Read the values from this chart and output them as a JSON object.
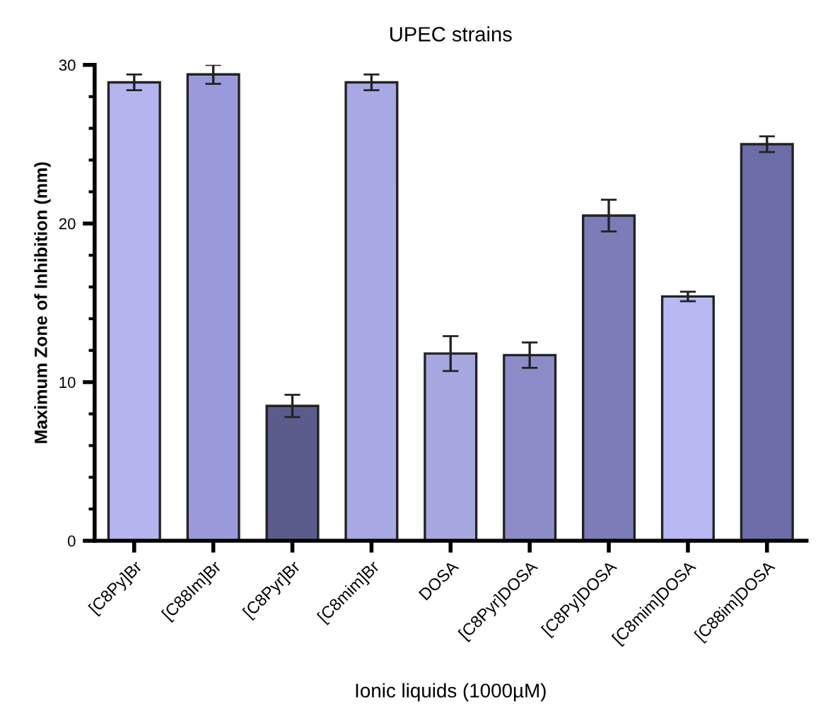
{
  "chart_data": {
    "type": "bar",
    "title": "UPEC strains",
    "xlabel": "Ionic liquids (1000µM)",
    "ylabel": "Maximum Zone of Inhibition (mm)",
    "categories": [
      "[C8Py]Br",
      "[C88Im]Br",
      "[C8Pyr]Br",
      "[C8mim]Br",
      "DOSA",
      "[C8Pyr]DOSA",
      "[C8Py]DOSA",
      "[C8mim]DOSA",
      "[C88im]DOSA"
    ],
    "values": [
      28.9,
      29.4,
      8.5,
      28.9,
      11.8,
      11.7,
      20.5,
      15.4,
      25.0
    ],
    "errors": [
      0.5,
      0.6,
      0.7,
      0.5,
      1.1,
      0.8,
      1.0,
      0.3,
      0.5
    ],
    "colors": [
      "#b4b4ee",
      "#9a9ada",
      "#5c5c8c",
      "#a8a8e4",
      "#a8a8e0",
      "#8c8cc8",
      "#7c7cb8",
      "#b8b8f2",
      "#6c6ca8"
    ],
    "ylim": [
      0,
      30
    ],
    "yticks": [
      0,
      {
        "value": 2,
        "label": null
      },
      {
        "value": 4,
        "label": null
      },
      {
        "value": 6,
        "label": null
      },
      {
        "value": 8,
        "label": null
      },
      10,
      {
        "value": 12,
        "label": null
      },
      {
        "value": 14,
        "label": null
      },
      {
        "value": 16,
        "label": null
      },
      {
        "value": 18,
        "label": null
      },
      20,
      {
        "value": 22,
        "label": null
      },
      {
        "value": 24,
        "label": null
      },
      {
        "value": 26,
        "label": null
      },
      {
        "value": 28,
        "label": null
      },
      30
    ],
    "grid": false,
    "legend": false
  }
}
